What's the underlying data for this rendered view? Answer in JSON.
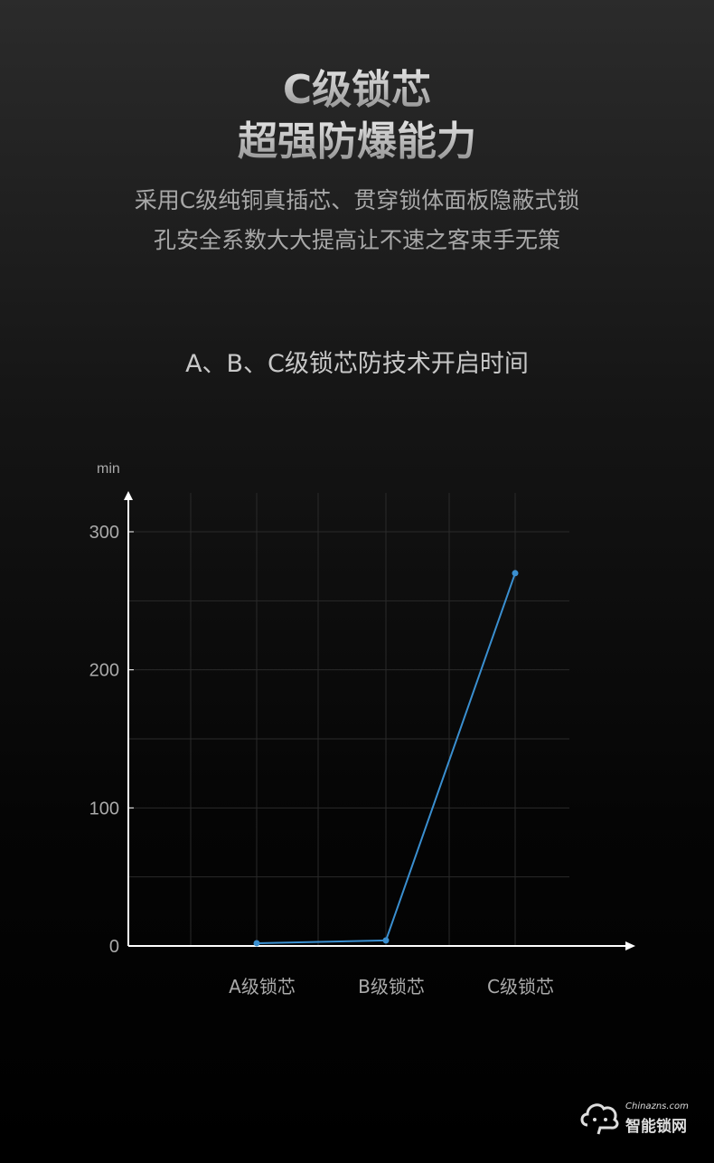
{
  "header": {
    "title_line1": "C级锁芯",
    "title_line2": "超强防爆能力",
    "subtitle_line1": "采用C级纯铜真插芯、贯穿锁体面板隐蔽式锁",
    "subtitle_line2": "孔安全系数大大提高让不速之客束手无策"
  },
  "chart_data": {
    "type": "line",
    "title": "A、B、C级锁芯防技术开启时间",
    "ylabel": "min",
    "categories": [
      "A级锁芯",
      "B级锁芯",
      "C级锁芯"
    ],
    "values": [
      2,
      4,
      270
    ],
    "ylim": [
      0,
      300
    ],
    "yticks": [
      0,
      100,
      200,
      300
    ],
    "grid": true,
    "line_color": "#3a8fd0"
  },
  "watermark": {
    "en": "Chinazns.com",
    "cn": "智能锁网"
  }
}
